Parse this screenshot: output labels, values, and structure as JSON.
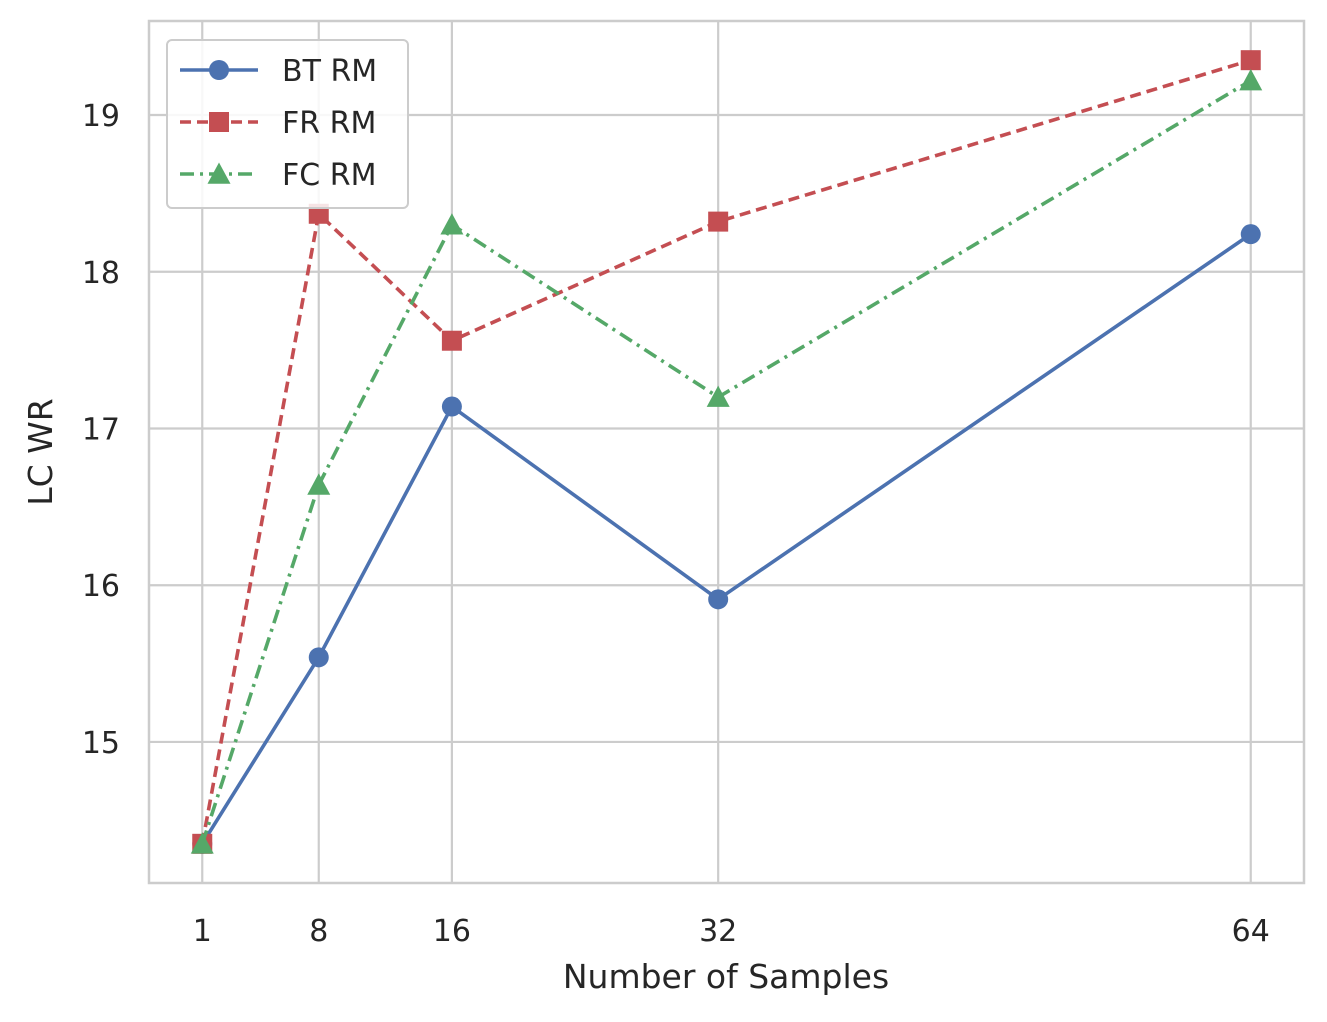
{
  "chart_data": {
    "type": "line",
    "title": "",
    "xlabel": "Number of Samples",
    "ylabel": "LC WR",
    "x": [
      1,
      8,
      16,
      32,
      64
    ],
    "x_ticks": [
      "1",
      "8",
      "16",
      "32",
      "64"
    ],
    "y_ticks": [
      "15",
      "16",
      "17",
      "18",
      "19"
    ],
    "xlim": [
      -2.2,
      67.2
    ],
    "ylim": [
      14.1,
      19.6
    ],
    "grid": true,
    "legend_position": "upper left",
    "series": [
      {
        "name": "BT RM",
        "values": [
          14.35,
          15.54,
          17.14,
          15.91,
          18.24
        ],
        "color": "#4c72b0",
        "marker": "circle",
        "linestyle": "solid"
      },
      {
        "name": "FR RM",
        "values": [
          14.35,
          18.37,
          17.56,
          18.32,
          19.35
        ],
        "color": "#c44e52",
        "marker": "square",
        "linestyle": "dashed"
      },
      {
        "name": "FC RM",
        "values": [
          14.35,
          16.64,
          18.3,
          17.2,
          19.22
        ],
        "color": "#55a868",
        "marker": "triangle",
        "linestyle": "dashdot"
      }
    ]
  }
}
